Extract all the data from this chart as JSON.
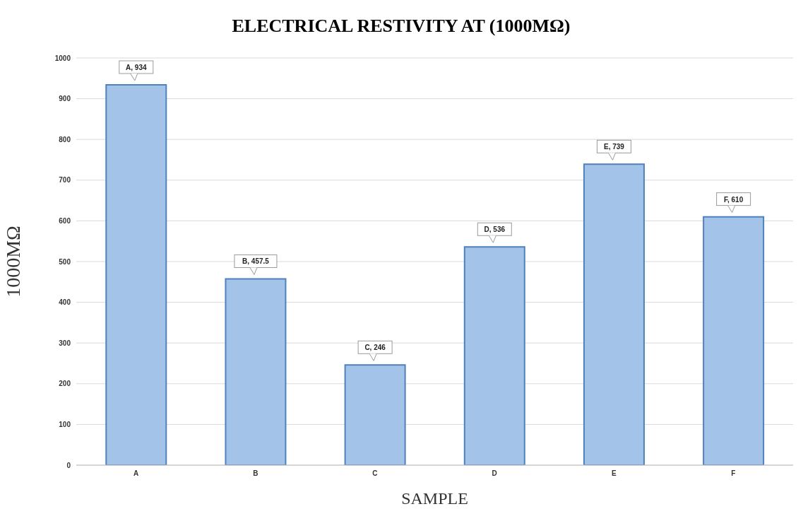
{
  "chart_data": {
    "type": "bar",
    "title": "ELECTRICAL RESTIVITY AT (1000MΩ)",
    "xlabel": "SAMPLE",
    "ylabel": "1000MΩ",
    "categories": [
      "A",
      "B",
      "C",
      "D",
      "E",
      "F"
    ],
    "values": [
      934,
      457.5,
      246,
      536,
      739,
      610
    ],
    "value_labels": [
      "A, 934",
      "B, 457.5",
      "C, 246",
      "D, 536",
      "E, 739",
      "F, 610"
    ],
    "color": "#a3c3e8",
    "ylim": [
      0,
      1000
    ],
    "yticks": [
      0,
      100,
      200,
      300,
      400,
      500,
      600,
      700,
      800,
      900,
      1000
    ],
    "grid": "y",
    "legend": false
  }
}
